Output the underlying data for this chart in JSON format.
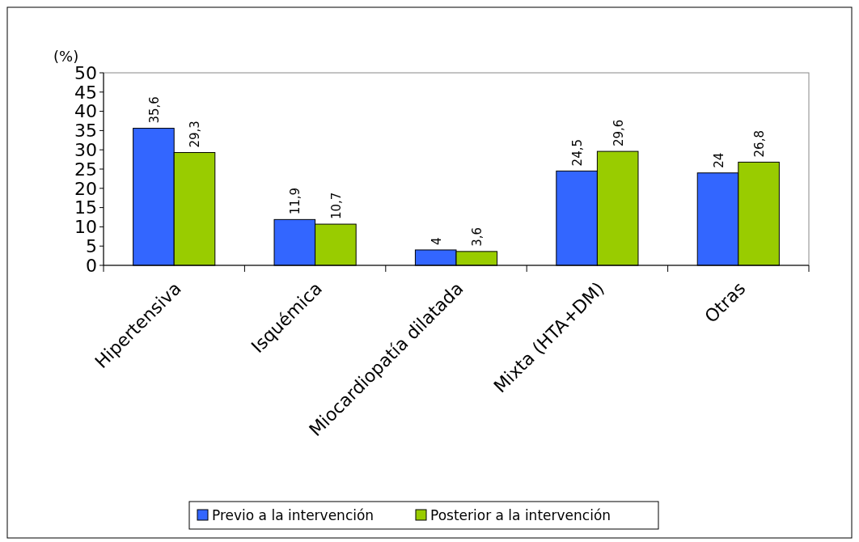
{
  "chart_data": {
    "type": "bar",
    "ylabel": "(%)",
    "categories": [
      "Hipertensiva",
      "Isquémica",
      "Miocardiopatía dilatada",
      "Mixta (HTA+DM)",
      "Otras"
    ],
    "series": [
      {
        "name": "Previo a la intervención",
        "color": "#3366ff",
        "values": [
          35.6,
          11.9,
          4,
          24.5,
          24
        ]
      },
      {
        "name": "Posterior a la intervención",
        "color": "#99cc00",
        "values": [
          29.3,
          10.7,
          3.6,
          29.6,
          26.8
        ]
      }
    ],
    "value_labels": [
      [
        "35,6",
        "11,9",
        "4",
        "24,5",
        "24"
      ],
      [
        "29,3",
        "10,7",
        "3,6",
        "29,6",
        "26,8"
      ]
    ],
    "ylim": [
      0,
      50
    ],
    "yticks": [
      0,
      5,
      10,
      15,
      20,
      25,
      30,
      35,
      40,
      45,
      50
    ],
    "grid": false,
    "legend": "bottom"
  }
}
